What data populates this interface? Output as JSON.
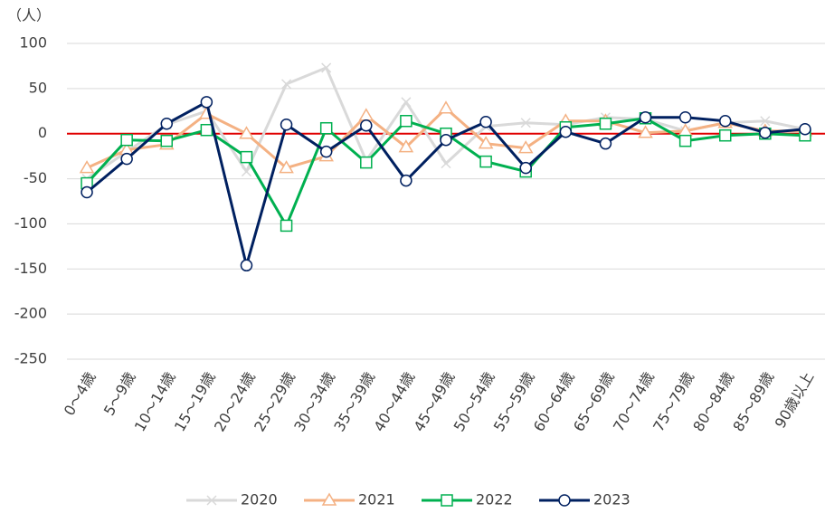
{
  "chart_data": {
    "type": "line",
    "y_axis_label": "（人）",
    "categories": [
      "0～4歳",
      "5～9歳",
      "10～14歳",
      "15～19歳",
      "20～24歳",
      "25～29歳",
      "30～34歳",
      "35～39歳",
      "40～44歳",
      "45～49歳",
      "50～54歳",
      "55～59歳",
      "60～64歳",
      "65～69歳",
      "70～74歳",
      "75～79歳",
      "80～84歳",
      "85～89歳",
      "90歳以上"
    ],
    "series": [
      {
        "name": "2020",
        "color": "#d9d9d9",
        "marker": "x",
        "values": [
          -50,
          -20,
          10,
          25,
          -42,
          55,
          73,
          -30,
          35,
          -33,
          8,
          12,
          10,
          18,
          16,
          3,
          12,
          14,
          5
        ]
      },
      {
        "name": "2021",
        "color": "#f4b183",
        "marker": "triangle",
        "values": [
          -38,
          -18,
          -12,
          22,
          0,
          -38,
          -25,
          20,
          -15,
          28,
          -11,
          -16,
          14,
          14,
          1,
          3,
          12,
          3,
          3
        ]
      },
      {
        "name": "2022",
        "color": "#00b050",
        "marker": "square",
        "values": [
          -55,
          -7,
          -8,
          4,
          -26,
          -102,
          6,
          -32,
          14,
          0,
          -31,
          -42,
          7,
          11,
          17,
          -8,
          -2,
          0,
          -2
        ]
      },
      {
        "name": "2023",
        "color": "#002060",
        "marker": "circle",
        "values": [
          -65,
          -28,
          11,
          35,
          -146,
          10,
          -20,
          9,
          -52,
          -7,
          13,
          -38,
          2,
          -11,
          18,
          18,
          14,
          1,
          5
        ]
      }
    ],
    "ylim": [
      -250,
      100
    ],
    "yticks": [
      -250,
      -200,
      -150,
      -100,
      -50,
      0,
      50,
      100
    ],
    "grid": true,
    "zero_line_color": "#e00000",
    "legend": "bottom"
  }
}
